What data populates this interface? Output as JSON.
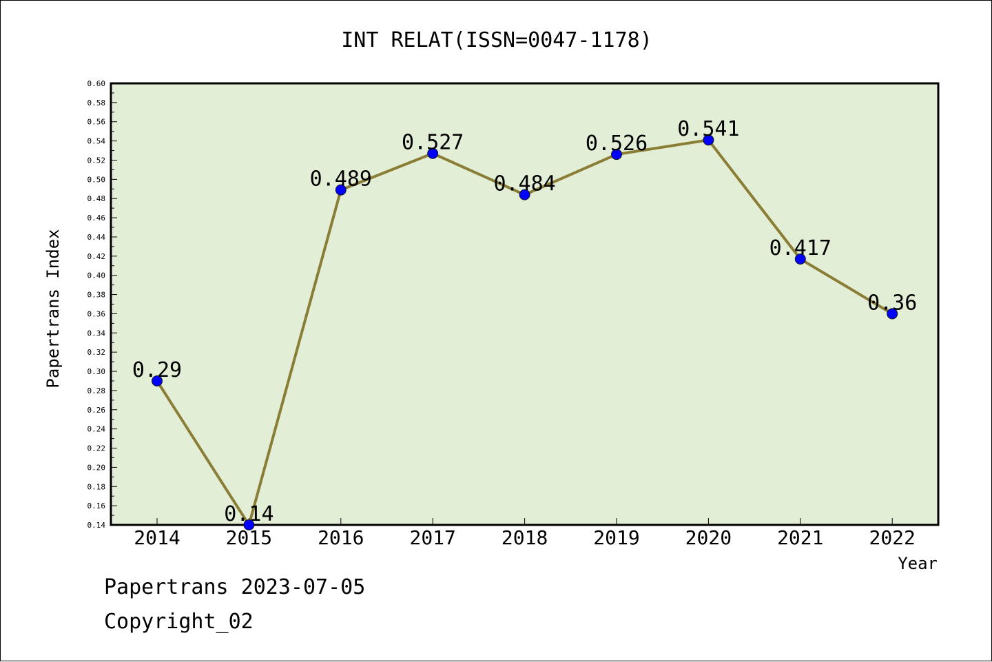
{
  "chart_data": {
    "type": "line",
    "title": "INT RELAT(ISSN=0047-1178)",
    "xlabel": "Year",
    "ylabel": "Papertrans Index",
    "categories": [
      "2014",
      "2015",
      "2016",
      "2017",
      "2018",
      "2019",
      "2020",
      "2021",
      "2022"
    ],
    "series": [
      {
        "values": [
          0.29,
          0.14,
          0.489,
          0.527,
          0.484,
          0.526,
          0.541,
          0.417,
          0.36
        ],
        "labels": [
          "0.29",
          "0.14",
          "0.489",
          "0.527",
          "0.484",
          "0.526",
          "0.541",
          "0.417",
          "0.36"
        ]
      }
    ],
    "ylim": [
      0.14,
      0.6
    ],
    "yticks": [
      "0.14",
      "0.16",
      "0.18",
      "0.20",
      "0.22",
      "0.24",
      "0.26",
      "0.28",
      "0.30",
      "0.32",
      "0.34",
      "0.36",
      "0.38",
      "0.40",
      "0.42",
      "0.44",
      "0.46",
      "0.48",
      "0.50",
      "0.52",
      "0.54",
      "0.56",
      "0.58",
      "0.60"
    ],
    "grid": false,
    "legend": "none"
  },
  "colors": {
    "plot_background": "#e2efd6",
    "line": "#8a7d35",
    "marker": "#0000ff"
  },
  "footer": {
    "line1": "Papertrans 2023-07-05",
    "line2": "Copyright_02"
  }
}
